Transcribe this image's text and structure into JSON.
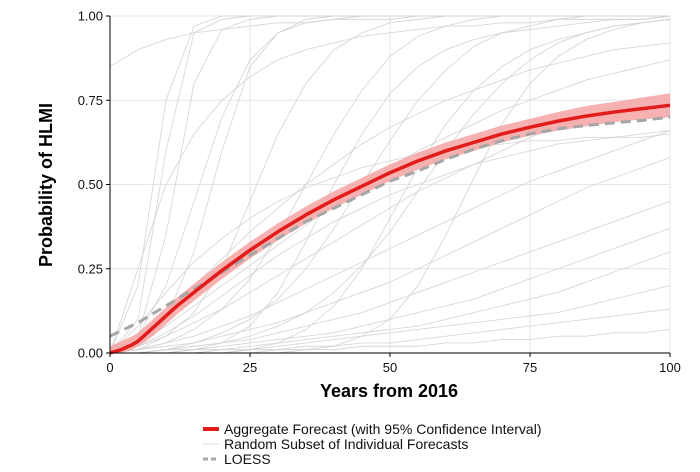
{
  "chart_data": {
    "type": "line",
    "xlabel": "Years from 2016",
    "ylabel": "Probability of HLMI",
    "xlim": [
      0,
      100
    ],
    "ylim": [
      0,
      1
    ],
    "x_ticks": [
      0,
      25,
      50,
      75,
      100
    ],
    "x_tick_labels": [
      "0",
      "25",
      "50",
      "75",
      "100"
    ],
    "y_ticks": [
      0,
      0.25,
      0.5,
      0.75,
      1
    ],
    "y_tick_labels": [
      "0.00",
      "0.25",
      "0.50",
      "0.75",
      "1.00"
    ],
    "grid": true,
    "legend_position": "bottom",
    "colors": {
      "aggregate": "#e21b1b",
      "band": "#f4a3a3",
      "individual": "#d3d3d3",
      "loess": "#a6a6a6",
      "grid": "#e6e6e6",
      "axis": "#000000"
    },
    "series": [
      {
        "name": "Aggregate Forecast (with 95% Confidence Interval)",
        "style": "solid-thick",
        "x": [
          0,
          2,
          4,
          5,
          6,
          8,
          10,
          12,
          15,
          20,
          25,
          30,
          35,
          40,
          45,
          50,
          55,
          60,
          65,
          70,
          75,
          80,
          85,
          90,
          95,
          100
        ],
        "y": [
          0.0,
          0.01,
          0.025,
          0.035,
          0.05,
          0.08,
          0.11,
          0.14,
          0.18,
          0.245,
          0.305,
          0.36,
          0.41,
          0.455,
          0.495,
          0.535,
          0.57,
          0.6,
          0.625,
          0.65,
          0.67,
          0.688,
          0.703,
          0.715,
          0.725,
          0.735
        ],
        "ci_lower": [
          0.0,
          0.0,
          0.01,
          0.02,
          0.03,
          0.055,
          0.085,
          0.115,
          0.155,
          0.22,
          0.28,
          0.335,
          0.385,
          0.43,
          0.47,
          0.51,
          0.545,
          0.575,
          0.6,
          0.625,
          0.645,
          0.66,
          0.673,
          0.685,
          0.693,
          0.7
        ],
        "ci_upper": [
          0.02,
          0.035,
          0.05,
          0.06,
          0.075,
          0.105,
          0.135,
          0.165,
          0.205,
          0.27,
          0.33,
          0.385,
          0.435,
          0.48,
          0.52,
          0.56,
          0.595,
          0.625,
          0.65,
          0.675,
          0.695,
          0.715,
          0.733,
          0.745,
          0.758,
          0.77
        ]
      },
      {
        "name": "Random Subset of Individual Forecasts",
        "style": "thin-light",
        "x": [
          0,
          5,
          10,
          15,
          20,
          25,
          30,
          35,
          40,
          45,
          50,
          55,
          60,
          65,
          70,
          75,
          80,
          85,
          90,
          95,
          100
        ],
        "curves": [
          [
            0.0,
            0.1,
            0.6,
            0.95,
            0.99,
            1.0,
            1.0,
            1.0,
            1.0,
            1.0,
            1.0,
            1.0,
            1.0,
            1.0,
            1.0,
            1.0,
            1.0,
            1.0,
            1.0,
            1.0,
            1.0
          ],
          [
            0.0,
            0.2,
            0.75,
            0.97,
            1.0,
            1.0,
            1.0,
            1.0,
            1.0,
            1.0,
            1.0,
            1.0,
            1.0,
            1.0,
            1.0,
            1.0,
            1.0,
            1.0,
            1.0,
            1.0,
            1.0
          ],
          [
            0.0,
            0.05,
            0.35,
            0.8,
            0.96,
            0.99,
            1.0,
            1.0,
            1.0,
            1.0,
            1.0,
            1.0,
            1.0,
            1.0,
            1.0,
            1.0,
            1.0,
            1.0,
            1.0,
            1.0,
            1.0
          ],
          [
            0.0,
            0.02,
            0.1,
            0.3,
            0.6,
            0.85,
            0.95,
            0.99,
            1.0,
            1.0,
            1.0,
            1.0,
            1.0,
            1.0,
            1.0,
            1.0,
            1.0,
            1.0,
            1.0,
            1.0,
            1.0
          ],
          [
            0.0,
            0.05,
            0.2,
            0.45,
            0.7,
            0.87,
            0.95,
            0.98,
            0.99,
            1.0,
            1.0,
            1.0,
            1.0,
            1.0,
            1.0,
            1.0,
            1.0,
            1.0,
            1.0,
            1.0,
            1.0
          ],
          [
            0.0,
            0.01,
            0.05,
            0.12,
            0.25,
            0.45,
            0.65,
            0.8,
            0.9,
            0.95,
            0.98,
            0.99,
            1.0,
            1.0,
            1.0,
            1.0,
            1.0,
            1.0,
            1.0,
            1.0,
            1.0
          ],
          [
            0.0,
            0.01,
            0.03,
            0.07,
            0.13,
            0.22,
            0.35,
            0.5,
            0.65,
            0.78,
            0.88,
            0.94,
            0.97,
            0.99,
            1.0,
            1.0,
            1.0,
            1.0,
            1.0,
            1.0,
            1.0
          ],
          [
            0.0,
            0.0,
            0.01,
            0.03,
            0.06,
            0.1,
            0.16,
            0.25,
            0.37,
            0.5,
            0.63,
            0.75,
            0.84,
            0.91,
            0.95,
            0.97,
            0.99,
            1.0,
            1.0,
            1.0,
            1.0
          ],
          [
            0.0,
            0.0,
            0.01,
            0.02,
            0.03,
            0.05,
            0.08,
            0.12,
            0.18,
            0.26,
            0.36,
            0.48,
            0.6,
            0.71,
            0.8,
            0.87,
            0.92,
            0.95,
            0.97,
            0.98,
            0.99
          ],
          [
            0.0,
            0.05,
            0.12,
            0.2,
            0.28,
            0.36,
            0.43,
            0.5,
            0.56,
            0.62,
            0.67,
            0.71,
            0.75,
            0.78,
            0.81,
            0.84,
            0.86,
            0.88,
            0.9,
            0.91,
            0.92
          ],
          [
            0.0,
            0.03,
            0.08,
            0.14,
            0.2,
            0.26,
            0.32,
            0.38,
            0.44,
            0.5,
            0.55,
            0.6,
            0.64,
            0.68,
            0.72,
            0.75,
            0.78,
            0.81,
            0.83,
            0.85,
            0.87
          ],
          [
            0.0,
            0.02,
            0.05,
            0.09,
            0.13,
            0.18,
            0.23,
            0.28,
            0.33,
            0.38,
            0.43,
            0.48,
            0.52,
            0.56,
            0.6,
            0.64,
            0.67,
            0.7,
            0.73,
            0.75,
            0.77
          ],
          [
            0.0,
            0.01,
            0.03,
            0.05,
            0.08,
            0.11,
            0.15,
            0.19,
            0.23,
            0.27,
            0.31,
            0.35,
            0.39,
            0.43,
            0.47,
            0.51,
            0.54,
            0.57,
            0.6,
            0.63,
            0.66
          ],
          [
            0.0,
            0.01,
            0.02,
            0.03,
            0.05,
            0.07,
            0.09,
            0.12,
            0.15,
            0.18,
            0.21,
            0.25,
            0.29,
            0.33,
            0.37,
            0.41,
            0.45,
            0.49,
            0.52,
            0.55,
            0.58
          ],
          [
            0.0,
            0.0,
            0.01,
            0.02,
            0.03,
            0.04,
            0.06,
            0.08,
            0.1,
            0.12,
            0.15,
            0.18,
            0.21,
            0.24,
            0.27,
            0.3,
            0.33,
            0.36,
            0.39,
            0.42,
            0.45
          ],
          [
            0.0,
            0.0,
            0.01,
            0.01,
            0.02,
            0.03,
            0.04,
            0.05,
            0.06,
            0.08,
            0.1,
            0.12,
            0.14,
            0.16,
            0.19,
            0.22,
            0.25,
            0.28,
            0.31,
            0.34,
            0.37
          ],
          [
            0.0,
            0.0,
            0.0,
            0.01,
            0.01,
            0.02,
            0.03,
            0.04,
            0.05,
            0.06,
            0.07,
            0.08,
            0.1,
            0.12,
            0.14,
            0.16,
            0.18,
            0.21,
            0.24,
            0.27,
            0.3
          ],
          [
            0.0,
            0.0,
            0.0,
            0.0,
            0.01,
            0.01,
            0.02,
            0.03,
            0.04,
            0.05,
            0.06,
            0.07,
            0.08,
            0.09,
            0.1,
            0.11,
            0.12,
            0.14,
            0.16,
            0.18,
            0.2
          ],
          [
            0.0,
            0.0,
            0.0,
            0.0,
            0.0,
            0.01,
            0.01,
            0.02,
            0.02,
            0.03,
            0.03,
            0.04,
            0.05,
            0.06,
            0.07,
            0.08,
            0.09,
            0.1,
            0.11,
            0.12,
            0.13
          ],
          [
            0.0,
            0.0,
            0.0,
            0.0,
            0.0,
            0.0,
            0.01,
            0.01,
            0.01,
            0.02,
            0.02,
            0.02,
            0.03,
            0.03,
            0.04,
            0.04,
            0.05,
            0.05,
            0.06,
            0.06,
            0.07
          ],
          [
            0.85,
            0.9,
            0.93,
            0.95,
            0.96,
            0.97,
            0.98,
            0.98,
            0.99,
            0.99,
            0.99,
            1.0,
            1.0,
            1.0,
            1.0,
            1.0,
            1.0,
            1.0,
            1.0,
            1.0,
            1.0
          ],
          [
            0.0,
            0.25,
            0.5,
            0.65,
            0.75,
            0.82,
            0.87,
            0.9,
            0.92,
            0.94,
            0.95,
            0.96,
            0.97,
            0.97,
            0.98,
            0.98,
            0.99,
            0.99,
            0.99,
            0.99,
            1.0
          ],
          [
            0.0,
            0.0,
            0.0,
            0.01,
            0.03,
            0.08,
            0.18,
            0.33,
            0.5,
            0.65,
            0.77,
            0.85,
            0.9,
            0.93,
            0.95,
            0.96,
            0.97,
            0.98,
            0.99,
            0.99,
            1.0
          ],
          [
            0.0,
            0.0,
            0.0,
            0.0,
            0.0,
            0.01,
            0.03,
            0.07,
            0.14,
            0.25,
            0.4,
            0.55,
            0.68,
            0.78,
            0.85,
            0.9,
            0.93,
            0.95,
            0.97,
            0.98,
            0.99
          ],
          [
            0.0,
            0.0,
            0.0,
            0.0,
            0.0,
            0.0,
            0.0,
            0.01,
            0.02,
            0.05,
            0.1,
            0.2,
            0.35,
            0.52,
            0.68,
            0.8,
            0.88,
            0.93,
            0.96,
            0.98,
            0.99
          ],
          [
            0.0,
            0.02,
            0.06,
            0.11,
            0.17,
            0.23,
            0.29,
            0.34,
            0.39,
            0.43,
            0.47,
            0.5,
            0.53,
            0.56,
            0.58,
            0.6,
            0.62,
            0.63,
            0.64,
            0.65,
            0.66
          ],
          [
            0.0,
            0.08,
            0.18,
            0.27,
            0.34,
            0.4,
            0.45,
            0.49,
            0.52,
            0.55,
            0.57,
            0.59,
            0.6,
            0.61,
            0.62,
            0.63,
            0.63,
            0.64,
            0.64,
            0.64,
            0.65
          ]
        ]
      },
      {
        "name": "LOESS",
        "style": "dashed",
        "x": [
          0,
          5,
          10,
          15,
          20,
          25,
          30,
          35,
          40,
          45,
          50,
          55,
          60,
          65,
          70,
          75,
          80,
          85,
          90,
          95,
          100
        ],
        "y": [
          0.05,
          0.09,
          0.14,
          0.19,
          0.24,
          0.29,
          0.34,
          0.39,
          0.43,
          0.47,
          0.51,
          0.54,
          0.575,
          0.605,
          0.63,
          0.65,
          0.665,
          0.675,
          0.683,
          0.69,
          0.7
        ]
      }
    ],
    "legend": [
      {
        "label": "Aggregate Forecast (with 95% Confidence Interval)",
        "swatch": "solid-thick",
        "color": "#e21b1b"
      },
      {
        "label": "Random Subset of Individual Forecasts",
        "swatch": "thin-light",
        "color": "#d9d9d9"
      },
      {
        "label": "LOESS",
        "swatch": "dashed",
        "color": "#a6a6a6"
      }
    ]
  }
}
